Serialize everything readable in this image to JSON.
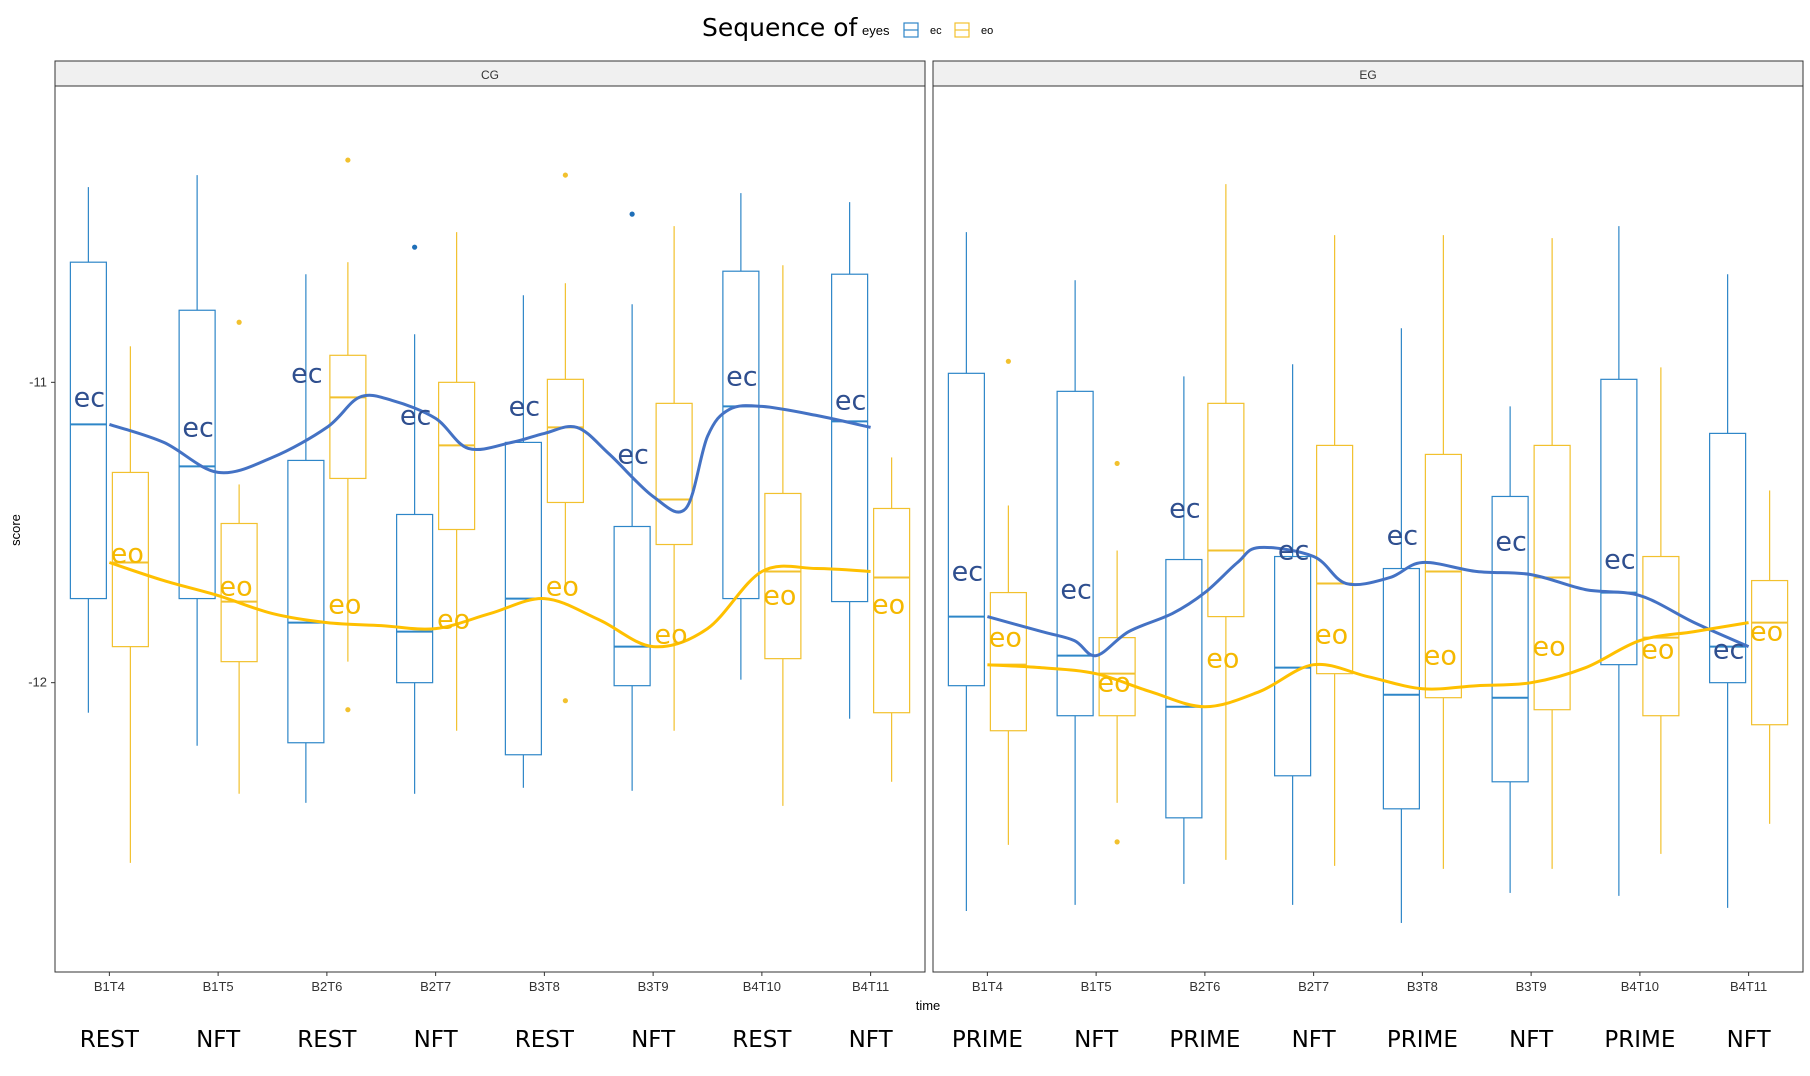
{
  "colors": {
    "ec_box": "#2E86C8",
    "eo_box": "#F2C12E",
    "ec_line": "#4472C4",
    "eo_line": "#FFC000",
    "ec_label": "#2F4F8F",
    "eo_label": "#F5B800",
    "strip_fill": "#F0F0F0",
    "strip_border": "#333333"
  },
  "chart_data": {
    "type": "box",
    "title": "Sequence of",
    "legend": {
      "title": "eyes",
      "entries": [
        "ec",
        "eo"
      ],
      "placement": "top"
    },
    "xlabel": "time",
    "ylabel": "score",
    "ylim": [
      -12.94,
      -10.04
    ],
    "y_ticks": [
      -11,
      -12
    ],
    "y_tick_labels": [
      "-11",
      "-12"
    ],
    "categories": [
      "B1T4",
      "B1T5",
      "B2T6",
      "B2T7",
      "B3T8",
      "B3T9",
      "B4T10",
      "B4T11"
    ],
    "groups": [
      "ec",
      "eo"
    ],
    "panels": [
      {
        "name": "CG",
        "phases": [
          "REST",
          "NFT",
          "REST",
          "NFT",
          "REST",
          "NFT",
          "REST",
          "NFT"
        ],
        "boxes": {
          "ec": [
            {
              "whislo": -12.1,
              "q1": -11.72,
              "med": -11.14,
              "q3": -10.6,
              "whishi": -10.35,
              "outliers": []
            },
            {
              "whislo": -12.21,
              "q1": -11.72,
              "med": -11.28,
              "q3": -10.76,
              "whishi": -10.31,
              "outliers": []
            },
            {
              "whislo": -12.4,
              "q1": -12.2,
              "med": -11.8,
              "q3": -11.26,
              "whishi": -10.64,
              "outliers": []
            },
            {
              "whislo": -12.37,
              "q1": -12.0,
              "med": -11.83,
              "q3": -11.44,
              "whishi": -10.84,
              "outliers": [
                -10.55
              ]
            },
            {
              "whislo": -12.35,
              "q1": -12.24,
              "med": -11.72,
              "q3": -11.2,
              "whishi": -10.71,
              "outliers": []
            },
            {
              "whislo": -12.36,
              "q1": -12.01,
              "med": -11.88,
              "q3": -11.48,
              "whishi": -10.74,
              "outliers": [
                -10.44
              ]
            },
            {
              "whislo": -11.99,
              "q1": -11.72,
              "med": -11.08,
              "q3": -10.63,
              "whishi": -10.37,
              "outliers": []
            },
            {
              "whislo": -12.12,
              "q1": -11.73,
              "med": -11.13,
              "q3": -10.64,
              "whishi": -10.4,
              "outliers": []
            }
          ],
          "eo": [
            {
              "whislo": -12.6,
              "q1": -11.88,
              "med": -11.6,
              "q3": -11.3,
              "whishi": -10.88,
              "outliers": []
            },
            {
              "whislo": -12.37,
              "q1": -11.93,
              "med": -11.73,
              "q3": -11.47,
              "whishi": -11.34,
              "outliers": [
                -10.8
              ]
            },
            {
              "whislo": -11.93,
              "q1": -11.32,
              "med": -11.05,
              "q3": -10.91,
              "whishi": -10.6,
              "outliers": [
                -10.26,
                -12.09
              ]
            },
            {
              "whislo": -12.16,
              "q1": -11.49,
              "med": -11.21,
              "q3": -11.0,
              "whishi": -10.5,
              "outliers": []
            },
            {
              "whislo": -11.7,
              "q1": -11.4,
              "med": -11.15,
              "q3": -10.99,
              "whishi": -10.67,
              "outliers": [
                -10.31,
                -12.06
              ]
            },
            {
              "whislo": -12.16,
              "q1": -11.54,
              "med": -11.39,
              "q3": -11.07,
              "whishi": -10.48,
              "outliers": []
            },
            {
              "whislo": -12.41,
              "q1": -11.92,
              "med": -11.63,
              "q3": -11.37,
              "whishi": -10.61,
              "outliers": []
            },
            {
              "whislo": -12.33,
              "q1": -12.1,
              "med": -11.65,
              "q3": -11.42,
              "whishi": -11.25,
              "outliers": []
            }
          ]
        },
        "smooth": {
          "ec": [
            {
              "x": 1,
              "y": -11.14
            },
            {
              "x": 1.5,
              "y": -11.2
            },
            {
              "x": 2,
              "y": -11.3
            },
            {
              "x": 2.5,
              "y": -11.25
            },
            {
              "x": 3,
              "y": -11.15
            },
            {
              "x": 3.3,
              "y": -11.05
            },
            {
              "x": 3.6,
              "y": -11.06
            },
            {
              "x": 4,
              "y": -11.12
            },
            {
              "x": 4.3,
              "y": -11.22
            },
            {
              "x": 4.7,
              "y": -11.2
            },
            {
              "x": 5,
              "y": -11.17
            },
            {
              "x": 5.3,
              "y": -11.15
            },
            {
              "x": 5.6,
              "y": -11.24
            },
            {
              "x": 6,
              "y": -11.38
            },
            {
              "x": 6.3,
              "y": -11.42
            },
            {
              "x": 6.5,
              "y": -11.18
            },
            {
              "x": 6.7,
              "y": -11.09
            },
            {
              "x": 7,
              "y": -11.08
            },
            {
              "x": 7.5,
              "y": -11.11
            },
            {
              "x": 8,
              "y": -11.15
            }
          ],
          "eo": [
            {
              "x": 1,
              "y": -11.6
            },
            {
              "x": 1.5,
              "y": -11.66
            },
            {
              "x": 2,
              "y": -11.71
            },
            {
              "x": 2.5,
              "y": -11.77
            },
            {
              "x": 3,
              "y": -11.8
            },
            {
              "x": 3.5,
              "y": -11.81
            },
            {
              "x": 4,
              "y": -11.82
            },
            {
              "x": 4.5,
              "y": -11.77
            },
            {
              "x": 5,
              "y": -11.72
            },
            {
              "x": 5.5,
              "y": -11.79
            },
            {
              "x": 6,
              "y": -11.88
            },
            {
              "x": 6.5,
              "y": -11.82
            },
            {
              "x": 7,
              "y": -11.63
            },
            {
              "x": 7.5,
              "y": -11.62
            },
            {
              "x": 8,
              "y": -11.63
            }
          ]
        },
        "labels": {
          "ec": [
            -11.05,
            -11.15,
            -10.97,
            -11.11,
            -11.08,
            -11.24,
            -10.98,
            -11.06
          ],
          "eo": [
            -11.57,
            -11.68,
            -11.74,
            -11.79,
            -11.68,
            -11.84,
            -11.71,
            -11.74
          ]
        }
      },
      {
        "name": "EG",
        "phases": [
          "PRIME",
          "NFT",
          "PRIME",
          "NFT",
          "PRIME",
          "NFT",
          "PRIME",
          "NFT"
        ],
        "boxes": {
          "ec": [
            {
              "whislo": -12.76,
              "q1": -12.01,
              "med": -11.78,
              "q3": -10.97,
              "whishi": -10.5,
              "outliers": []
            },
            {
              "whislo": -12.74,
              "q1": -12.11,
              "med": -11.91,
              "q3": -11.03,
              "whishi": -10.66,
              "outliers": []
            },
            {
              "whislo": -12.67,
              "q1": -12.45,
              "med": -12.08,
              "q3": -11.59,
              "whishi": -10.98,
              "outliers": []
            },
            {
              "whislo": -12.74,
              "q1": -12.31,
              "med": -11.95,
              "q3": -11.58,
              "whishi": -10.94,
              "outliers": []
            },
            {
              "whislo": -12.8,
              "q1": -12.42,
              "med": -12.04,
              "q3": -11.62,
              "whishi": -10.82,
              "outliers": []
            },
            {
              "whislo": -12.7,
              "q1": -12.33,
              "med": -12.05,
              "q3": -11.38,
              "whishi": -11.08,
              "outliers": []
            },
            {
              "whislo": -12.71,
              "q1": -11.94,
              "med": -11.7,
              "q3": -10.99,
              "whishi": -10.48,
              "outliers": []
            },
            {
              "whislo": -12.75,
              "q1": -12.0,
              "med": -11.88,
              "q3": -11.17,
              "whishi": -10.64,
              "outliers": []
            }
          ],
          "eo": [
            {
              "whislo": -12.54,
              "q1": -12.16,
              "med": -11.94,
              "q3": -11.7,
              "whishi": -11.41,
              "outliers": [
                -10.93
              ]
            },
            {
              "whislo": -12.4,
              "q1": -12.11,
              "med": -11.97,
              "q3": -11.85,
              "whishi": -11.56,
              "outliers": [
                -11.27,
                -12.53
              ]
            },
            {
              "whislo": -12.59,
              "q1": -11.78,
              "med": -11.56,
              "q3": -11.07,
              "whishi": -10.34,
              "outliers": []
            },
            {
              "whislo": -12.61,
              "q1": -11.97,
              "med": -11.67,
              "q3": -11.21,
              "whishi": -10.51,
              "outliers": []
            },
            {
              "whislo": -12.62,
              "q1": -12.05,
              "med": -11.63,
              "q3": -11.24,
              "whishi": -10.51,
              "outliers": []
            },
            {
              "whislo": -12.62,
              "q1": -12.09,
              "med": -11.65,
              "q3": -11.21,
              "whishi": -10.52,
              "outliers": []
            },
            {
              "whislo": -12.57,
              "q1": -12.11,
              "med": -11.85,
              "q3": -11.58,
              "whishi": -10.95,
              "outliers": []
            },
            {
              "whislo": -12.47,
              "q1": -12.14,
              "med": -11.8,
              "q3": -11.66,
              "whishi": -11.36,
              "outliers": []
            }
          ]
        },
        "smooth": {
          "ec": [
            {
              "x": 1,
              "y": -11.78
            },
            {
              "x": 1.5,
              "y": -11.83
            },
            {
              "x": 1.8,
              "y": -11.86
            },
            {
              "x": 2,
              "y": -11.91
            },
            {
              "x": 2.3,
              "y": -11.83
            },
            {
              "x": 2.7,
              "y": -11.77
            },
            {
              "x": 3,
              "y": -11.7
            },
            {
              "x": 3.3,
              "y": -11.6
            },
            {
              "x": 3.5,
              "y": -11.55
            },
            {
              "x": 4,
              "y": -11.58
            },
            {
              "x": 4.3,
              "y": -11.67
            },
            {
              "x": 4.7,
              "y": -11.65
            },
            {
              "x": 5,
              "y": -11.6
            },
            {
              "x": 5.5,
              "y": -11.63
            },
            {
              "x": 6,
              "y": -11.64
            },
            {
              "x": 6.5,
              "y": -11.69
            },
            {
              "x": 7,
              "y": -11.71
            },
            {
              "x": 7.5,
              "y": -11.8
            },
            {
              "x": 8,
              "y": -11.88
            }
          ],
          "eo": [
            {
              "x": 1,
              "y": -11.94
            },
            {
              "x": 1.5,
              "y": -11.95
            },
            {
              "x": 2,
              "y": -11.97
            },
            {
              "x": 2.5,
              "y": -12.03
            },
            {
              "x": 3,
              "y": -12.08
            },
            {
              "x": 3.5,
              "y": -12.03
            },
            {
              "x": 4,
              "y": -11.94
            },
            {
              "x": 4.5,
              "y": -11.98
            },
            {
              "x": 5,
              "y": -12.02
            },
            {
              "x": 5.5,
              "y": -12.01
            },
            {
              "x": 6,
              "y": -12.0
            },
            {
              "x": 6.5,
              "y": -11.95
            },
            {
              "x": 7,
              "y": -11.86
            },
            {
              "x": 7.5,
              "y": -11.83
            },
            {
              "x": 8,
              "y": -11.8
            }
          ]
        },
        "labels": {
          "ec": [
            -11.63,
            -11.69,
            -11.42,
            -11.56,
            -11.51,
            -11.53,
            -11.59,
            -11.89
          ],
          "eo": [
            -11.85,
            -12.0,
            -11.92,
            -11.84,
            -11.91,
            -11.88,
            -11.89,
            -11.83
          ]
        }
      }
    ]
  }
}
